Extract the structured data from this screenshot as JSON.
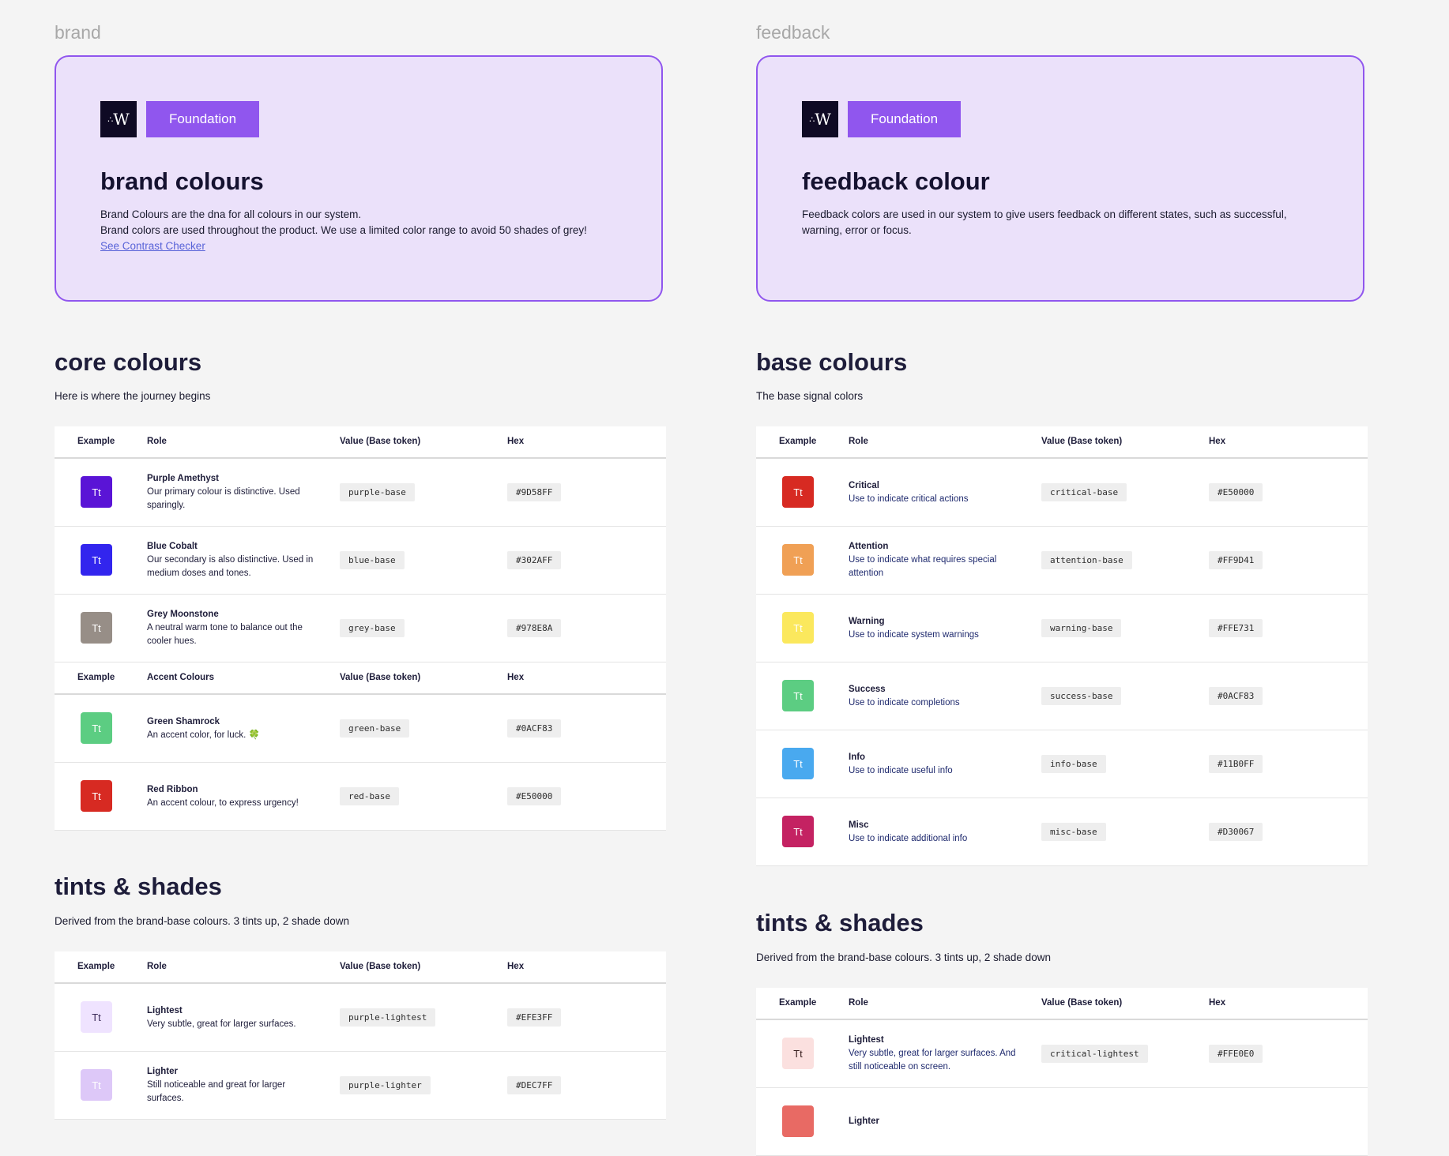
{
  "brand": {
    "frame_label": "brand",
    "logo_text": "W",
    "tag": "Foundation",
    "title": "brand colours",
    "desc_line1": "Brand Colours are the dna for all colours in our system.",
    "desc_line2": "Brand colors are used throughout the product. We use a limited color range to avoid 50 shades of grey!",
    "link": "See Contrast Checker",
    "core": {
      "title": "core colours",
      "subtitle": "Here is where the journey begins",
      "headers": {
        "example": "Example",
        "role": "Role",
        "value": "Value (Base token)",
        "hex": "Hex"
      },
      "rows": [
        {
          "swatch": "Tt",
          "color": "#5a14d6",
          "name": "Purple Amethyst",
          "desc": "Our primary colour is distinctive. Used sparingly.",
          "token": "purple-base",
          "hex": "#9D58FF"
        },
        {
          "swatch": "Tt",
          "color": "#3225ee",
          "name": "Blue Cobalt",
          "desc": "Our secondary is also distinctive. Used in medium doses and tones.",
          "token": "blue-base",
          "hex": "#302AFF"
        },
        {
          "swatch": "Tt",
          "color": "#978e87",
          "name": "Grey Moonstone",
          "desc": "A neutral warm tone to balance out the cooler hues.",
          "token": "grey-base",
          "hex": "#978E8A"
        }
      ],
      "accent_headers": {
        "example": "Example",
        "role": "Accent Colours",
        "value": "Value (Base token)",
        "hex": "Hex"
      },
      "accent_rows": [
        {
          "swatch": "Tt",
          "color": "#5ccd82",
          "name": "Green Shamrock",
          "desc": "An accent color, for luck. 🍀",
          "token": "green-base",
          "hex": "#0ACF83"
        },
        {
          "swatch": "Tt",
          "color": "#d72a22",
          "name": "Red Ribbon",
          "desc": "An accent colour, to express urgency!",
          "token": "red-base",
          "hex": "#E50000"
        }
      ]
    },
    "tints": {
      "title": "tints & shades",
      "subtitle": "Derived from the brand-base colours. 3 tints up, 2 shade down",
      "headers": {
        "example": "Example",
        "role": "Role",
        "value": "Value (Base token)",
        "hex": "Hex"
      },
      "rows": [
        {
          "swatch": "Tt",
          "color": "#efe3ff",
          "text_color": "#3a2a5a",
          "name": "Lightest",
          "desc": "Very subtle, great for larger surfaces.",
          "token": "purple-lightest",
          "hex": "#EFE3FF"
        },
        {
          "swatch": "Tt",
          "color": "#ddc8f8",
          "text_color": "#ffffff",
          "name": "Lighter",
          "desc": "Still noticeable and great for larger surfaces.",
          "token": "purple-lighter",
          "hex": "#DEC7FF"
        }
      ]
    }
  },
  "feedback": {
    "frame_label": "feedback",
    "logo_text": "W",
    "tag": "Foundation",
    "title": "feedback colour",
    "desc": "Feedback colors are used in our system to give users feedback on different states, such as successful, warning, error or focus.",
    "base": {
      "title": "base colours",
      "subtitle": "The base signal colors",
      "headers": {
        "example": "Example",
        "role": "Role",
        "value": "Value (Base token)",
        "hex": "Hex"
      },
      "rows": [
        {
          "swatch": "Tt",
          "color": "#d72a22",
          "name": "Critical",
          "desc": "Use to indicate critical actions",
          "token": "critical-base",
          "hex": "#E50000"
        },
        {
          "swatch": "Tt",
          "color": "#f0a055",
          "name": "Attention",
          "desc": "Use to indicate what requires special attention",
          "token": "attention-base",
          "hex": "#FF9D41"
        },
        {
          "swatch": "Tt",
          "color": "#fbe85d",
          "name": "Warning",
          "desc": "Use to indicate system warnings",
          "token": "warning-base",
          "hex": "#FFE731"
        },
        {
          "swatch": "Tt",
          "color": "#5ccd82",
          "name": "Success",
          "desc": "Use to indicate completions",
          "token": "success-base",
          "hex": "#0ACF83"
        },
        {
          "swatch": "Tt",
          "color": "#49a9ef",
          "name": "Info",
          "desc": "Use to indicate useful info",
          "token": "info-base",
          "hex": "#11B0FF"
        },
        {
          "swatch": "Tt",
          "color": "#c42262",
          "name": "Misc",
          "desc": "Use to indicate additional info",
          "token": "misc-base",
          "hex": "#D30067"
        }
      ]
    },
    "tints": {
      "title": "tints & shades",
      "subtitle": "Derived from the brand-base colours. 3 tints up, 2 shade down",
      "headers": {
        "example": "Example",
        "role": "Role",
        "value": "Value (Base token)",
        "hex": "Hex"
      },
      "rows": [
        {
          "swatch": "Tt",
          "color": "#fbe0df",
          "text_color": "#3a2020",
          "name": "Lightest",
          "desc": "Very subtle, great for larger surfaces. And still noticeable on screen.",
          "token": "critical-lightest",
          "hex": "#FFE0E0"
        },
        {
          "swatch": "",
          "color": "#e86a64",
          "name": "Lighter",
          "desc": "",
          "token": "",
          "hex": ""
        }
      ]
    }
  }
}
